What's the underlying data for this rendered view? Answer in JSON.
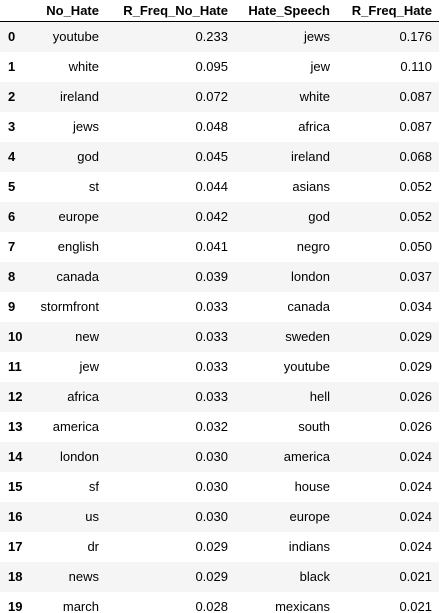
{
  "table": {
    "columns": [
      "",
      "No_Hate",
      "R_Freq_No_Hate",
      "Hate_Speech",
      "R_Freq_Hate"
    ],
    "rows": [
      {
        "index": "0",
        "no_hate": "youtube",
        "r_freq_no_hate": "0.233",
        "hate_speech": "jews",
        "r_freq_hate": "0.176"
      },
      {
        "index": "1",
        "no_hate": "white",
        "r_freq_no_hate": "0.095",
        "hate_speech": "jew",
        "r_freq_hate": "0.110"
      },
      {
        "index": "2",
        "no_hate": "ireland",
        "r_freq_no_hate": "0.072",
        "hate_speech": "white",
        "r_freq_hate": "0.087"
      },
      {
        "index": "3",
        "no_hate": "jews",
        "r_freq_no_hate": "0.048",
        "hate_speech": "africa",
        "r_freq_hate": "0.087"
      },
      {
        "index": "4",
        "no_hate": "god",
        "r_freq_no_hate": "0.045",
        "hate_speech": "ireland",
        "r_freq_hate": "0.068"
      },
      {
        "index": "5",
        "no_hate": "st",
        "r_freq_no_hate": "0.044",
        "hate_speech": "asians",
        "r_freq_hate": "0.052"
      },
      {
        "index": "6",
        "no_hate": "europe",
        "r_freq_no_hate": "0.042",
        "hate_speech": "god",
        "r_freq_hate": "0.052"
      },
      {
        "index": "7",
        "no_hate": "english",
        "r_freq_no_hate": "0.041",
        "hate_speech": "negro",
        "r_freq_hate": "0.050"
      },
      {
        "index": "8",
        "no_hate": "canada",
        "r_freq_no_hate": "0.039",
        "hate_speech": "london",
        "r_freq_hate": "0.037"
      },
      {
        "index": "9",
        "no_hate": "stormfront",
        "r_freq_no_hate": "0.033",
        "hate_speech": "canada",
        "r_freq_hate": "0.034"
      },
      {
        "index": "10",
        "no_hate": "new",
        "r_freq_no_hate": "0.033",
        "hate_speech": "sweden",
        "r_freq_hate": "0.029"
      },
      {
        "index": "11",
        "no_hate": "jew",
        "r_freq_no_hate": "0.033",
        "hate_speech": "youtube",
        "r_freq_hate": "0.029"
      },
      {
        "index": "12",
        "no_hate": "africa",
        "r_freq_no_hate": "0.033",
        "hate_speech": "hell",
        "r_freq_hate": "0.026"
      },
      {
        "index": "13",
        "no_hate": "america",
        "r_freq_no_hate": "0.032",
        "hate_speech": "south",
        "r_freq_hate": "0.026"
      },
      {
        "index": "14",
        "no_hate": "london",
        "r_freq_no_hate": "0.030",
        "hate_speech": "america",
        "r_freq_hate": "0.024"
      },
      {
        "index": "15",
        "no_hate": "sf",
        "r_freq_no_hate": "0.030",
        "hate_speech": "house",
        "r_freq_hate": "0.024"
      },
      {
        "index": "16",
        "no_hate": "us",
        "r_freq_no_hate": "0.030",
        "hate_speech": "europe",
        "r_freq_hate": "0.024"
      },
      {
        "index": "17",
        "no_hate": "dr",
        "r_freq_no_hate": "0.029",
        "hate_speech": "indians",
        "r_freq_hate": "0.024"
      },
      {
        "index": "18",
        "no_hate": "news",
        "r_freq_no_hate": "0.029",
        "hate_speech": "black",
        "r_freq_hate": "0.021"
      },
      {
        "index": "19",
        "no_hate": "march",
        "r_freq_no_hate": "0.028",
        "hate_speech": "mexicans",
        "r_freq_hate": "0.021"
      }
    ]
  }
}
